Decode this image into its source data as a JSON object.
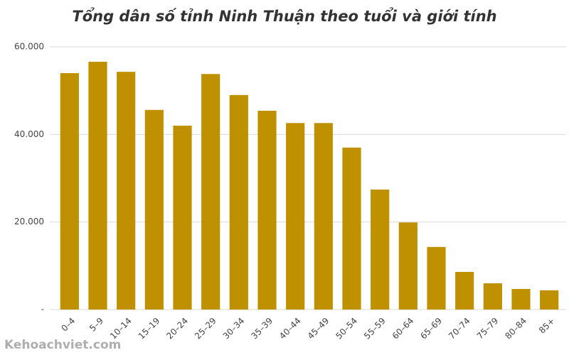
{
  "chart_data": {
    "type": "bar",
    "title": "Tổng dân số tỉnh Ninh Thuận theo tuổi và giới tính",
    "categories": [
      "0–4",
      "5–9",
      "10–14",
      "15–19",
      "20–24",
      "25–29",
      "30–34",
      "35–39",
      "40–44",
      "45–49",
      "50–54",
      "55–59",
      "60–64",
      "65–69",
      "70–74",
      "75–79",
      "80–84",
      "85+"
    ],
    "values": [
      54000,
      56600,
      54300,
      45600,
      42000,
      53800,
      49000,
      45400,
      42600,
      42600,
      37000,
      27400,
      19900,
      14300,
      8600,
      6000,
      4700,
      4400
    ],
    "color": "#bf9000",
    "ylim": [
      0,
      60000
    ],
    "yticks": [
      {
        "value": 0,
        "label": "-"
      },
      {
        "value": 20000,
        "label": "20.000"
      },
      {
        "value": 40000,
        "label": "40.000"
      },
      {
        "value": 60000,
        "label": "60.000"
      }
    ],
    "grid": true,
    "watermark": "Kehoachviet.com"
  }
}
